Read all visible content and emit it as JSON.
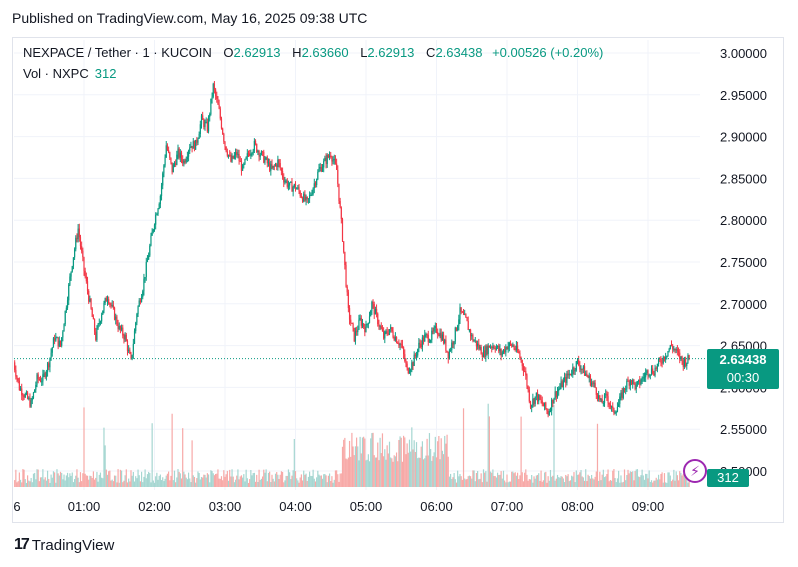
{
  "header": {
    "published": "Published on TradingView.com, May 16, 2025 09:38 UTC"
  },
  "legend": {
    "symbol": "NEXPACE / Tether · 1 · KUCOIN",
    "open_label": "O",
    "open": "2.62913",
    "high_label": "H",
    "high": "2.63660",
    "low_label": "L",
    "low": "2.62913",
    "close_label": "C",
    "close": "2.63438",
    "change": "+0.00526 (+0.20%)",
    "vol_label": "Vol · NXPC",
    "vol": "312"
  },
  "price_tag": {
    "price": "2.63438",
    "countdown": "00:30"
  },
  "volume_tag": "312",
  "brand": "TradingView",
  "colors": {
    "up": "#089981",
    "down": "#f23645",
    "up_volume": "#a5d6d1",
    "down_volume": "#f7a9a7",
    "grid": "#f0f3fa",
    "alert": "#9c27b0"
  },
  "icons": {
    "alert": "lightning-icon",
    "logo": "tradingview-logo-icon"
  },
  "chart_data": {
    "type": "candlestick",
    "ylim": [
      2.5,
      3.0
    ],
    "y_ticks": [
      "3.00000",
      "2.95000",
      "2.90000",
      "2.85000",
      "2.80000",
      "2.75000",
      "2.70000",
      "2.65000",
      "2.60000",
      "2.55000",
      "2.50000"
    ],
    "x_ticks": [
      "6",
      "01:00",
      "02:00",
      "03:00",
      "04:00",
      "05:00",
      "06:00",
      "07:00",
      "08:00",
      "09:00"
    ],
    "last_price": 2.63438,
    "close_path": [
      [
        "00:00",
        2.63
      ],
      [
        "00:05",
        2.6
      ],
      [
        "00:10",
        2.59
      ],
      [
        "00:15",
        2.58
      ],
      [
        "00:20",
        2.61
      ],
      [
        "00:25",
        2.61
      ],
      [
        "00:30",
        2.63
      ],
      [
        "00:35",
        2.66
      ],
      [
        "00:40",
        2.65
      ],
      [
        "00:45",
        2.7
      ],
      [
        "00:50",
        2.75
      ],
      [
        "00:55",
        2.79
      ],
      [
        "01:00",
        2.74
      ],
      [
        "01:05",
        2.7
      ],
      [
        "01:10",
        2.66
      ],
      [
        "01:15",
        2.69
      ],
      [
        "01:20",
        2.71
      ],
      [
        "01:25",
        2.69
      ],
      [
        "01:30",
        2.67
      ],
      [
        "01:35",
        2.66
      ],
      [
        "01:40",
        2.63
      ],
      [
        "01:45",
        2.69
      ],
      [
        "01:50",
        2.72
      ],
      [
        "01:55",
        2.76
      ],
      [
        "02:00",
        2.8
      ],
      [
        "02:05",
        2.83
      ],
      [
        "02:10",
        2.89
      ],
      [
        "02:15",
        2.86
      ],
      [
        "02:20",
        2.88
      ],
      [
        "02:25",
        2.87
      ],
      [
        "02:30",
        2.89
      ],
      [
        "02:35",
        2.89
      ],
      [
        "02:40",
        2.92
      ],
      [
        "02:45",
        2.91
      ],
      [
        "02:50",
        2.96
      ],
      [
        "02:55",
        2.93
      ],
      [
        "03:00",
        2.89
      ],
      [
        "03:05",
        2.87
      ],
      [
        "03:10",
        2.88
      ],
      [
        "03:15",
        2.86
      ],
      [
        "03:20",
        2.88
      ],
      [
        "03:25",
        2.89
      ],
      [
        "03:30",
        2.88
      ],
      [
        "03:35",
        2.87
      ],
      [
        "03:40",
        2.86
      ],
      [
        "03:45",
        2.87
      ],
      [
        "03:50",
        2.85
      ],
      [
        "03:55",
        2.84
      ],
      [
        "04:00",
        2.84
      ],
      [
        "04:05",
        2.83
      ],
      [
        "04:10",
        2.82
      ],
      [
        "04:15",
        2.84
      ],
      [
        "04:20",
        2.86
      ],
      [
        "04:25",
        2.87
      ],
      [
        "04:30",
        2.88
      ],
      [
        "04:35",
        2.86
      ],
      [
        "04:40",
        2.78
      ],
      [
        "04:45",
        2.69
      ],
      [
        "04:50",
        2.66
      ],
      [
        "04:55",
        2.68
      ],
      [
        "05:00",
        2.67
      ],
      [
        "05:05",
        2.7
      ],
      [
        "05:10",
        2.68
      ],
      [
        "05:15",
        2.66
      ],
      [
        "05:20",
        2.67
      ],
      [
        "05:25",
        2.66
      ],
      [
        "05:30",
        2.65
      ],
      [
        "05:35",
        2.62
      ],
      [
        "05:40",
        2.63
      ],
      [
        "05:45",
        2.65
      ],
      [
        "05:50",
        2.66
      ],
      [
        "05:55",
        2.66
      ],
      [
        "06:00",
        2.67
      ],
      [
        "06:05",
        2.66
      ],
      [
        "06:10",
        2.64
      ],
      [
        "06:15",
        2.66
      ],
      [
        "06:20",
        2.69
      ],
      [
        "06:25",
        2.68
      ],
      [
        "06:30",
        2.66
      ],
      [
        "06:35",
        2.65
      ],
      [
        "06:40",
        2.64
      ],
      [
        "06:45",
        2.65
      ],
      [
        "06:50",
        2.65
      ],
      [
        "06:55",
        2.64
      ],
      [
        "07:00",
        2.65
      ],
      [
        "07:05",
        2.65
      ],
      [
        "07:10",
        2.64
      ],
      [
        "07:15",
        2.62
      ],
      [
        "07:20",
        2.58
      ],
      [
        "07:25",
        2.59
      ],
      [
        "07:30",
        2.58
      ],
      [
        "07:35",
        2.57
      ],
      [
        "07:40",
        2.59
      ],
      [
        "07:45",
        2.6
      ],
      [
        "07:50",
        2.61
      ],
      [
        "07:55",
        2.62
      ],
      [
        "08:00",
        2.63
      ],
      [
        "08:05",
        2.62
      ],
      [
        "08:10",
        2.61
      ],
      [
        "08:15",
        2.6
      ],
      [
        "08:20",
        2.58
      ],
      [
        "08:25",
        2.59
      ],
      [
        "08:30",
        2.57
      ],
      [
        "08:35",
        2.58
      ],
      [
        "08:40",
        2.6
      ],
      [
        "08:45",
        2.61
      ],
      [
        "08:50",
        2.6
      ],
      [
        "08:55",
        2.61
      ],
      [
        "09:00",
        2.62
      ],
      [
        "09:05",
        2.62
      ],
      [
        "09:10",
        2.63
      ],
      [
        "09:15",
        2.64
      ],
      [
        "09:20",
        2.65
      ],
      [
        "09:25",
        2.64
      ],
      [
        "09:30",
        2.63
      ],
      [
        "09:35",
        2.634
      ]
    ]
  }
}
